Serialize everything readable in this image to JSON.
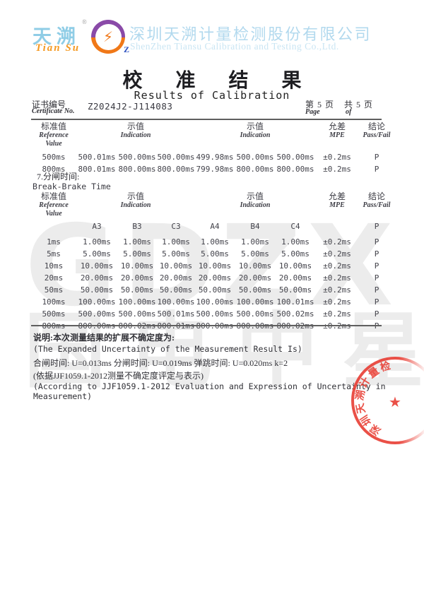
{
  "header": {
    "brand_cn": "天溯",
    "brand_en": "Tian Su",
    "registered_mark": "®",
    "badge_icon": "⚡",
    "badge_letter": "Z",
    "company_cn": "深圳天溯计量检测股份有限公司",
    "company_en": "ShenZhen Tiansu Calibration and Testing Co.,Ltd."
  },
  "title": {
    "cn": "校 准 结 果",
    "en": "Results of Calibration"
  },
  "certificate": {
    "label_cn": "证书编号",
    "label_en": "Certificate No.",
    "number": "Z2024J2-J114083",
    "page_label_cn": "第 5 页",
    "page_label_en": "Page",
    "total_label_cn": "共 5 页",
    "total_label_en": "of"
  },
  "columns": {
    "ref_cn": "标准值",
    "ref_en1": "Reference",
    "ref_en2": "Value",
    "ind_cn": "示值",
    "ind_en": "Indication",
    "mpe_cn": "允差",
    "mpe_en": "MPE",
    "pass_cn": "结论",
    "pass_en": "Pass/Fail"
  },
  "table1": {
    "rows": [
      [
        "500ms",
        "500.01ms",
        "500.00ms",
        "500.00ms",
        "499.98ms",
        "500.00ms",
        "500.00ms",
        "±0.2ms",
        "P"
      ],
      [
        "800ms",
        "800.01ms",
        "800.00ms",
        "800.00ms",
        "799.98ms",
        "800.00ms",
        "800.00ms",
        "±0.2ms",
        "P"
      ]
    ]
  },
  "section7": {
    "cn": "7.分闸时间:",
    "en": "Break-Brake Time"
  },
  "table2": {
    "subheader": [
      "",
      "A3",
      "B3",
      "C3",
      "A4",
      "B4",
      "C4",
      "",
      "P"
    ],
    "rows": [
      [
        "1ms",
        "1.00ms",
        "1.00ms",
        "1.00ms",
        "1.00ms",
        "1.00ms",
        "1.00ms",
        "±0.2ms",
        "P"
      ],
      [
        "5ms",
        "5.00ms",
        "5.00ms",
        "5.00ms",
        "5.00ms",
        "5.00ms",
        "5.00ms",
        "±0.2ms",
        "P"
      ],
      [
        "10ms",
        "10.00ms",
        "10.00ms",
        "10.00ms",
        "10.00ms",
        "10.00ms",
        "10.00ms",
        "±0.2ms",
        "P"
      ],
      [
        "20ms",
        "20.00ms",
        "20.00ms",
        "20.00ms",
        "20.00ms",
        "20.00ms",
        "20.00ms",
        "±0.2ms",
        "P"
      ],
      [
        "50ms",
        "50.00ms",
        "50.00ms",
        "50.00ms",
        "50.00ms",
        "50.00ms",
        "50.00ms",
        "±0.2ms",
        "P"
      ],
      [
        "100ms",
        "100.00ms",
        "100.00ms",
        "100.00ms",
        "100.00ms",
        "100.00ms",
        "100.01ms",
        "±0.2ms",
        "P"
      ],
      [
        "500ms",
        "500.00ms",
        "500.00ms",
        "500.01ms",
        "500.00ms",
        "500.00ms",
        "500.02ms",
        "±0.2ms",
        "P"
      ],
      [
        "800ms",
        "800.00ms",
        "800.02ms",
        "800.01ms",
        "800.00ms",
        "800.00ms",
        "800.02ms",
        "±0.2ms",
        "P"
      ]
    ]
  },
  "notes": {
    "line1_cn": "说明:本次测量结果的扩展不确定度为:",
    "line2_en": "(The Expanded Uncertainty of the Measurement Result Is)",
    "line3": "合闸时间: U=0.013ms  分闸时间: U=0.019ms  弹跳时间: U=0.020ms k=2",
    "line4_cn": "(依据JJF1059.1-2012测量不确定度评定与表示)",
    "line5_en": "(According to JJF1059.1-2012 Evaluation and Expression of Uncertainty in Measurement)"
  },
  "watermark": {
    "line1": "GDZX",
    "line2": "国电中星"
  },
  "stamp": {
    "company": "深圳天溯计量检测股份有限公司",
    "star": "★",
    "color": "#e8382e"
  },
  "colors": {
    "company_blue": "#b2d9ee",
    "brand_cyan": "#8fcde6",
    "brand_orange": "#f59a23",
    "badge_purple": "#8a4aa8",
    "badge_orange": "#f07818",
    "stamp_red": "#e8382e"
  }
}
